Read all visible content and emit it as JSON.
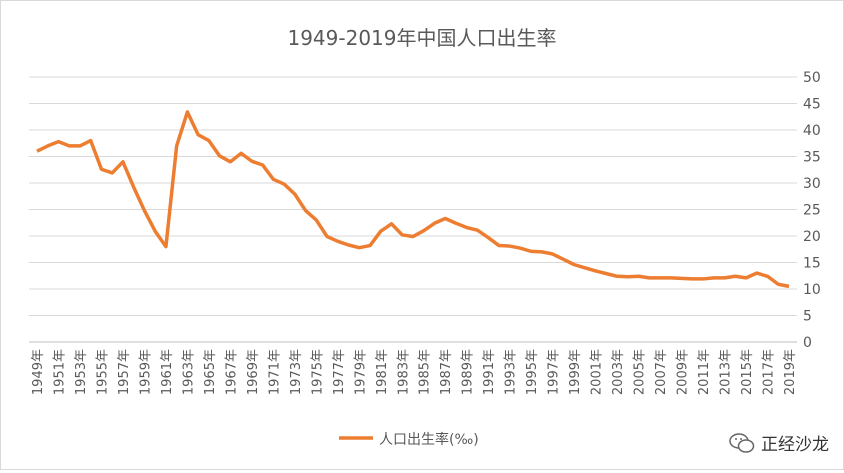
{
  "chart_data": {
    "type": "line",
    "title": "1949-2019年中国人口出生率",
    "xlabel": "",
    "ylabel": "",
    "ylim": [
      0,
      50
    ],
    "yticks": [
      0,
      5,
      10,
      15,
      20,
      25,
      30,
      35,
      40,
      45,
      50
    ],
    "y_axis_side": "right",
    "grid": true,
    "legend_position": "bottom",
    "x": [
      1949,
      1950,
      1951,
      1952,
      1953,
      1954,
      1955,
      1956,
      1957,
      1958,
      1959,
      1960,
      1961,
      1962,
      1963,
      1964,
      1965,
      1966,
      1967,
      1968,
      1969,
      1970,
      1971,
      1972,
      1973,
      1974,
      1975,
      1976,
      1977,
      1978,
      1979,
      1980,
      1981,
      1982,
      1983,
      1984,
      1985,
      1986,
      1987,
      1988,
      1989,
      1990,
      1991,
      1992,
      1993,
      1994,
      1995,
      1996,
      1997,
      1998,
      1999,
      2000,
      2001,
      2002,
      2003,
      2004,
      2005,
      2006,
      2007,
      2008,
      2009,
      2010,
      2011,
      2012,
      2013,
      2014,
      2015,
      2016,
      2017,
      2018,
      2019
    ],
    "x_suffix": "年",
    "series": [
      {
        "name": "人口出生率(‰)",
        "color": "#ED7D31",
        "values": [
          36.0,
          37.0,
          37.8,
          37.0,
          37.0,
          38.0,
          32.6,
          31.9,
          34.0,
          29.2,
          24.8,
          20.9,
          18.0,
          37.0,
          43.4,
          39.1,
          38.0,
          35.1,
          34.0,
          35.6,
          34.1,
          33.4,
          30.7,
          29.8,
          27.9,
          24.8,
          23.0,
          19.9,
          19.0,
          18.3,
          17.8,
          18.2,
          20.9,
          22.3,
          20.2,
          19.9,
          21.0,
          22.4,
          23.3,
          22.4,
          21.6,
          21.1,
          19.7,
          18.2,
          18.1,
          17.7,
          17.1,
          17.0,
          16.6,
          15.6,
          14.6,
          14.0,
          13.4,
          12.9,
          12.4,
          12.3,
          12.4,
          12.1,
          12.1,
          12.1,
          12.0,
          11.9,
          11.9,
          12.1,
          12.1,
          12.4,
          12.1,
          13.0,
          12.4,
          10.9,
          10.5
        ]
      }
    ]
  },
  "watermark": {
    "text": "正经沙龙"
  }
}
